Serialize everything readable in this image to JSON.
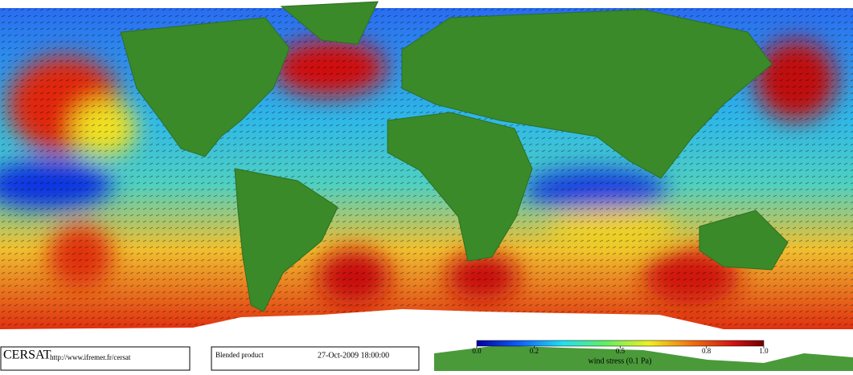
{
  "logo": "CERSAT",
  "url": "http://www.ifremer.fr/cersat",
  "product": "Blended product",
  "timestamp": "27-Oct-2009 18:00:00",
  "colorbar": {
    "label": "wind stress (0.1 Pa)",
    "lim": [
      0,
      1
    ],
    "ticks": [
      {
        "value": 0,
        "label": "0.0"
      },
      0.2,
      0.5,
      0.8,
      {
        "value": 1,
        "label": "1.0"
      }
    ]
  }
}
